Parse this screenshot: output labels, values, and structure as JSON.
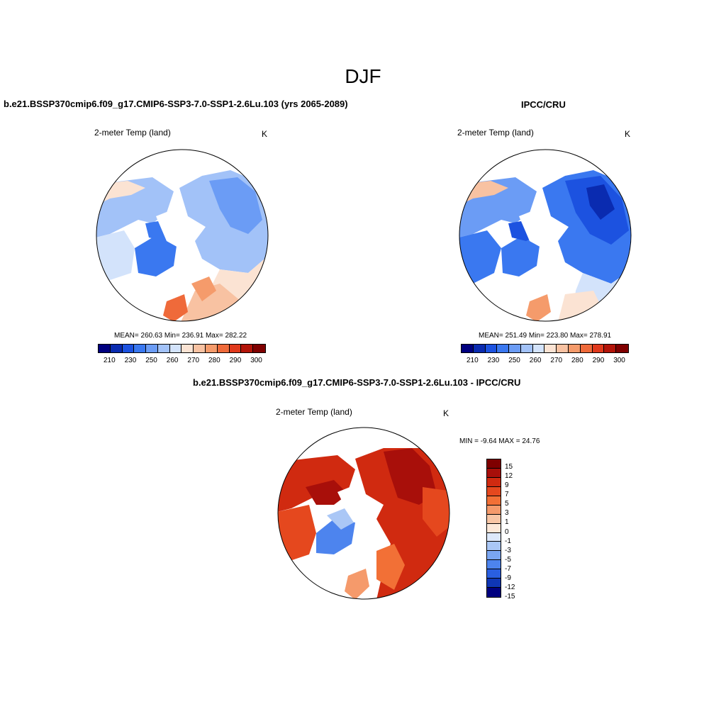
{
  "title": "DJF",
  "panels": {
    "left": {
      "title": "b.e21.BSSP370cmip6.f09_g17.CMIP6-SSP3-7.0-SSP1-2.6Lu.103 (yrs 2065-2089)",
      "label": "2-meter Temp (land)",
      "units": "K",
      "stats": "MEAN= 260.63  Min= 236.91  Max= 282.22",
      "colorbar_ticks": [
        "210",
        "230",
        "250",
        "260",
        "270",
        "280",
        "290",
        "300"
      ]
    },
    "right": {
      "title": "IPCC/CRU",
      "label": "2-meter Temp (land)",
      "units": "K",
      "stats": "MEAN= 251.49  Min= 223.80  Max= 278.91",
      "colorbar_ticks": [
        "210",
        "230",
        "250",
        "260",
        "270",
        "280",
        "290",
        "300"
      ]
    },
    "diff": {
      "title": "b.e21.BSSP370cmip6.f09_g17.CMIP6-SSP3-7.0-SSP1-2.6Lu.103 - IPCC/CRU",
      "label": "2-meter Temp (land)",
      "units": "K",
      "stats": "MIN =  -9.64 MAX =  24.76",
      "colorbar_ticks": [
        "15",
        "12",
        "9",
        "7",
        "5",
        "3",
        "1",
        "0",
        "-1",
        "-3",
        "-5",
        "-7",
        "-9",
        "-12",
        "-15"
      ]
    }
  },
  "colors": {
    "abs_scale": [
      "#00007f",
      "#0a2bb0",
      "#1c52e0",
      "#3a78f0",
      "#6b9cf5",
      "#a2c2f8",
      "#d3e3fb",
      "#fbe3d3",
      "#f8c2a2",
      "#f59b6b",
      "#ef6a3a",
      "#e0391c",
      "#b31409",
      "#7f0000"
    ],
    "diff_scale": [
      "#7f0000",
      "#a80f0a",
      "#d02a10",
      "#e5481e",
      "#f27036",
      "#f59a6b",
      "#f8c6a5",
      "#fce8d8",
      "#dde9fb",
      "#aac7f6",
      "#7aa6f2",
      "#4d84ee",
      "#2a5fe0",
      "#0f36b5",
      "#00007f"
    ]
  }
}
